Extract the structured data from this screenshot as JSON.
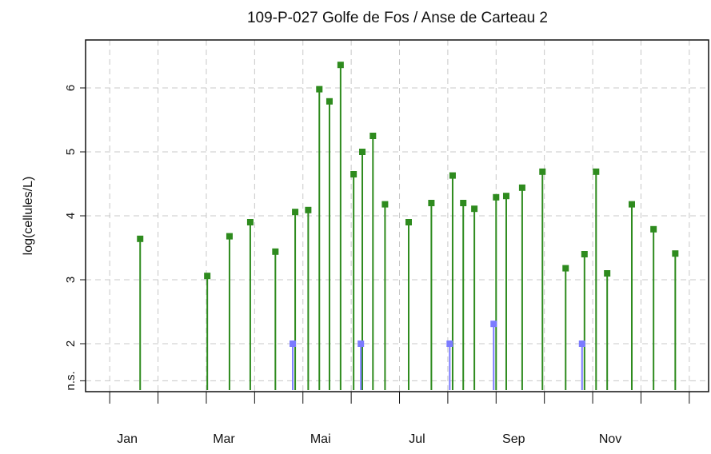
{
  "chart_data": {
    "type": "stem",
    "title": "109-P-027 Golfe de Fos / Anse de Carteau 2",
    "y_label": "log(cellules/L)",
    "xlim": [
      -0.5,
      12.4
    ],
    "ylim": [
      1.25,
      6.75
    ],
    "xticks": [
      {
        "value": 0,
        "label": "Jan"
      },
      {
        "value": 2,
        "label": "Mar"
      },
      {
        "value": 4,
        "label": "Mai"
      },
      {
        "value": 6,
        "label": "Jul"
      },
      {
        "value": 8,
        "label": "Sep"
      },
      {
        "value": 10,
        "label": "Nov"
      }
    ],
    "xminor": [
      1,
      3,
      5,
      7,
      9,
      11,
      12
    ],
    "yticks": [
      {
        "value": 1.42,
        "label": "n.s."
      },
      2,
      3,
      4,
      5,
      6
    ],
    "grid": true,
    "series": [
      {
        "color": "#2e8b1e",
        "x": [
          0.63,
          2.02,
          2.48,
          2.91,
          3.43,
          3.84,
          4.11,
          4.34,
          4.55,
          4.78,
          5.05,
          5.23,
          5.45,
          5.7,
          6.19,
          6.66,
          7.1,
          7.32,
          7.55,
          8.0,
          8.21,
          8.54,
          8.96,
          9.44,
          9.83,
          10.07,
          10.3,
          10.81,
          11.26,
          11.71
        ],
        "values": [
          3.64,
          3.06,
          3.68,
          3.9,
          3.44,
          4.06,
          4.09,
          5.98,
          5.79,
          6.36,
          4.65,
          5.0,
          5.25,
          4.18,
          3.9,
          4.2,
          4.63,
          4.2,
          4.11,
          4.29,
          4.31,
          4.44,
          4.69,
          3.18,
          3.4,
          4.69,
          3.1,
          4.18,
          3.79,
          3.41
        ]
      },
      {
        "color": "#7b7bff",
        "x": [
          3.79,
          5.2,
          7.04,
          7.95,
          9.78
        ],
        "values": [
          2,
          2,
          2,
          2.31,
          2
        ]
      }
    ]
  }
}
